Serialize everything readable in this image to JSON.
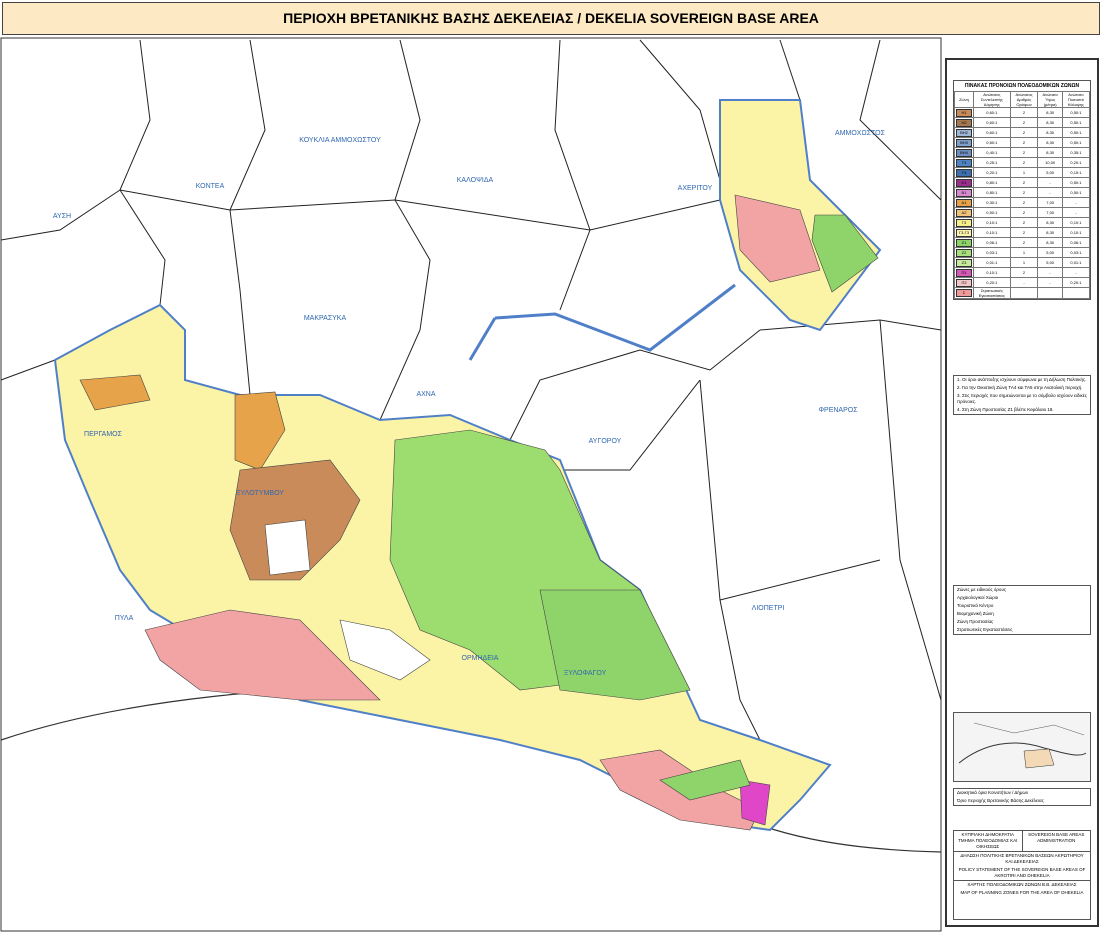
{
  "header": {
    "title": "ΠΕΡΙΟΧΗ ΒΡΕΤΑΝΙΚΗΣ ΒΑΣΗΣ ΔΕΚΕΛΕΙΑΣ / DEKELIA SOVEREIGN BASE AREA"
  },
  "place_labels": [
    "ΑΥΣΗ",
    "ΚΟΝΤΕΑ",
    "ΚΟΥΚΛΙΑ ΑΜΜΟΧΩΣΤΟΥ",
    "ΚΑΛΟΨΙΔΑ",
    "ΑΧΕΡΙΤΟΥ",
    "ΑΜΜΟΧΩΣΤΟΣ",
    "ΜΑΚΡΑΣΥΚΑ",
    "ΑΧΝΑ",
    "ΦΡΕΝΑΡΟΣ",
    "ΠΕΡΓΑΜΟΣ",
    "ΞΥΛΟΤΥΜΒΟΥ",
    "ΑΥΓΟΡΟΥ",
    "ΟΡΜΗΔΕΙΑ",
    "ΞΥΛΟΦΑΓΟΥ",
    "ΛΙΟΠΕΤΡΙ",
    "ΠΥΛΑ"
  ],
  "legend": {
    "title": "ΠΙΝΑΚΑΣ ΠΡΟΝΟΙΩΝ ΠΟΛΕΟΔΟΜΙΚΩΝ ΖΩΝΩΝ",
    "columns": [
      "Ζώνη",
      "Ανώτατος Συντελεστής Δόμησης",
      "Ανώτατος Αριθμός Ορόφων",
      "Ανώτατο Ύψος (μέτρα)",
      "Ανώτατο Ποσοστό Κάλυψης"
    ],
    "rows": [
      {
        "code": "Η1",
        "color": "#c98b5a",
        "cells": [
          "0,60:1",
          "2",
          "8,30",
          "0,50:1"
        ]
      },
      {
        "code": "Η2",
        "color": "#a7794f",
        "cells": [
          "0,60:1",
          "2",
          "8,30",
          "0,50:1"
        ]
      },
      {
        "code": "ΒΗ2",
        "color": "#9fb7d6",
        "cells": [
          "0,60:1",
          "2",
          "8,30",
          "0,50:1"
        ]
      },
      {
        "code": "ΒΗ3",
        "color": "#7f9fcc",
        "cells": [
          "0,60:1",
          "2",
          "8,30",
          "0,50:1"
        ]
      },
      {
        "code": "ΒΗ4",
        "color": "#6d8fc4",
        "cells": [
          "0,40:1",
          "2",
          "8,30",
          "0,35:1"
        ]
      },
      {
        "code": "Τ3",
        "color": "#4f84c4",
        "cells": [
          "0,25:1",
          "2",
          "10,00",
          "0,20:1"
        ]
      },
      {
        "code": "Τ4",
        "color": "#3e6fae",
        "cells": [
          "0,20:1",
          "1",
          "5,00",
          "0,15:1"
        ]
      },
      {
        "code": "Κ1",
        "color": "#9a2f8e",
        "cells": [
          "0,80:1",
          "2",
          "-",
          "0,50:1"
        ]
      },
      {
        "code": "Β1",
        "color": "#d88ad0",
        "cells": [
          "0,80:1",
          "2",
          "-",
          "0,50:1"
        ]
      },
      {
        "code": "Α1",
        "color": "#e6a34a",
        "cells": [
          "0,30:1",
          "2",
          "7,00",
          "-"
        ]
      },
      {
        "code": "Α2",
        "color": "#f0c27a",
        "cells": [
          "0,50:1",
          "2",
          "7,00",
          "-"
        ]
      },
      {
        "code": "Γ3",
        "color": "#f6ef8a",
        "cells": [
          "0,10:1",
          "2",
          "8,30",
          "0,10:1"
        ]
      },
      {
        "code": "Γ3-Γ3",
        "color": "#fbf4b0",
        "cells": [
          "0,10:1",
          "2",
          "8,30",
          "0,10:1"
        ]
      },
      {
        "code": "Ζ1",
        "color": "#8fd46a",
        "cells": [
          "0,06:1",
          "2",
          "8,30",
          "0,06:1"
        ]
      },
      {
        "code": "Ζ2",
        "color": "#a8e07f",
        "cells": [
          "0,03:1",
          "1",
          "5,00",
          "0,03:1"
        ]
      },
      {
        "code": "Ζ3",
        "color": "#c7ec9e",
        "cells": [
          "0,01:1",
          "1",
          "5,00",
          "0,01:1"
        ]
      },
      {
        "code": "Π1",
        "color": "#d65ab8",
        "cells": [
          "0,10:1",
          "2",
          "-",
          "-"
        ]
      },
      {
        "code": "Π2",
        "color": "#f3c7c7",
        "cells": [
          "0,20:1",
          "-",
          "-",
          "0,20:1"
        ]
      },
      {
        "code": "Σ",
        "color": "#ef9a9a",
        "cells": [
          "Στρατιωτικές Εγκαταστάσεις",
          "",
          "",
          ""
        ]
      }
    ]
  },
  "notes": [
    "1. Οι όροι ανάπτυξης ισχύουν σύμφωνα με τη Δήλωση Πολιτικής.",
    "2. Για την Οικιστική Ζώνη ΤΑ4 και ΤΑ5 στην Ανατολική περιοχή.",
    "3. Στις περιοχές που σημειώνονται με το σύμβολο ισχύουν ειδικές πρόνοιες.",
    "4. Στη Ζώνη Προστασίας Ζ1 βλέπε Κεφάλαιο 18."
  ],
  "symbols": [
    "Ζώνες με ειδικούς όρους",
    "Αρχαιολογικοί Χώροι",
    "Τουριστικό Κέντρο",
    "Βιομηχανική Ζώνη",
    "Ζώνη Προστασίας",
    "Στρατιωτικές Εγκαταστάσεις"
  ],
  "boundaries": [
    "Διοικητικά όρια Κοινοτήτων / Δήμων",
    "Όριο περιοχής Βρετανικής Βάσης Δεκέλειας"
  ],
  "title_block": {
    "left": "ΚΥΠΡΙΑΚΗ ΔΗΜΟΚΡΑΤΙΑ ΤΜΗΜΑ ΠΟΛΕΟΔΟΜΙΑΣ ΚΑΙ ΟΙΚΗΣΕΩΣ",
    "right": "SOVEREIGN BASE AREAS ADMINISTRATION",
    "policy_gr": "ΔΗΛΩΣΗ ΠΟΛΙΤΙΚΗΣ ΒΡΕΤΑΝΙΚΩΝ ΒΑΣΕΩΝ ΑΚΡΩΤΗΡΙΟΥ ΚΑΙ ΔΕΚΕΛΕΙΑΣ",
    "policy_en": "POLICY STATEMENT OF THE SOVEREIGN BASE AREAS OF AKROTIRI AND DHEKELIA",
    "map_gr": "ΧΑΡΤΗΣ ΠΟΛΕΟΔΟΜΙΚΩΝ ΖΩΝΩΝ Β.Β. ΔΕΚΕΛΕΙΑΣ",
    "map_en": "MAP OF PLANNING ZONES FOR THE AREA OF DHEKELIA"
  }
}
